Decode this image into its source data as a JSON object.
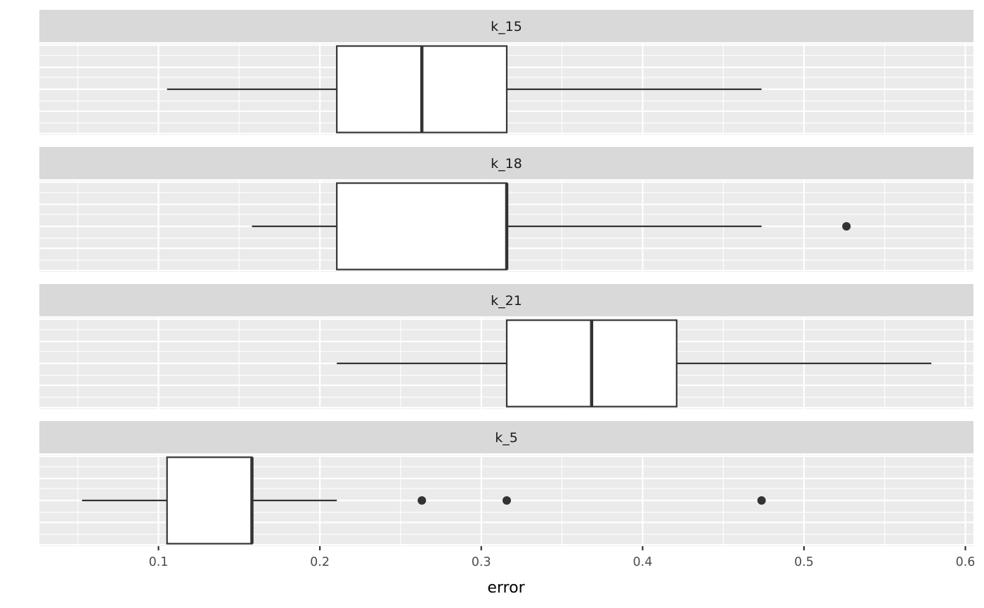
{
  "chart_data": {
    "type": "boxplot",
    "orientation": "horizontal",
    "title": "",
    "xlabel": "error",
    "ylabel": "",
    "xlim": [
      0.027,
      0.602
    ],
    "x_ticks": [
      0.1,
      0.2,
      0.3,
      0.4,
      0.5,
      0.6
    ],
    "x_tick_labels": [
      "0.1",
      "0.2",
      "0.3",
      "0.4",
      "0.5",
      "0.6"
    ],
    "grid": true,
    "facet_by": "k",
    "facets": [
      {
        "label": "k_15",
        "whisker_low": 0.1053,
        "q1": 0.2105,
        "median": 0.2632,
        "q3": 0.3158,
        "whisker_high": 0.4737,
        "outliers": []
      },
      {
        "label": "k_18",
        "whisker_low": 0.1579,
        "q1": 0.2105,
        "median": 0.3158,
        "q3": 0.3158,
        "whisker_high": 0.4737,
        "outliers": [
          0.5263
        ]
      },
      {
        "label": "k_21",
        "whisker_low": 0.2105,
        "q1": 0.3158,
        "median": 0.3684,
        "q3": 0.4211,
        "whisker_high": 0.5789,
        "outliers": []
      },
      {
        "label": "k_5",
        "whisker_low": 0.0526,
        "q1": 0.1053,
        "median": 0.1579,
        "q3": 0.1579,
        "whisker_high": 0.2105,
        "outliers": [
          0.2632,
          0.3158,
          0.4737
        ]
      }
    ]
  },
  "style": {
    "strip_color": "#d9d9d9",
    "panel_color": "#ebebeb",
    "grid_color": "#ffffff",
    "box_line_color": "#333333",
    "box_fill": "#ffffff"
  }
}
